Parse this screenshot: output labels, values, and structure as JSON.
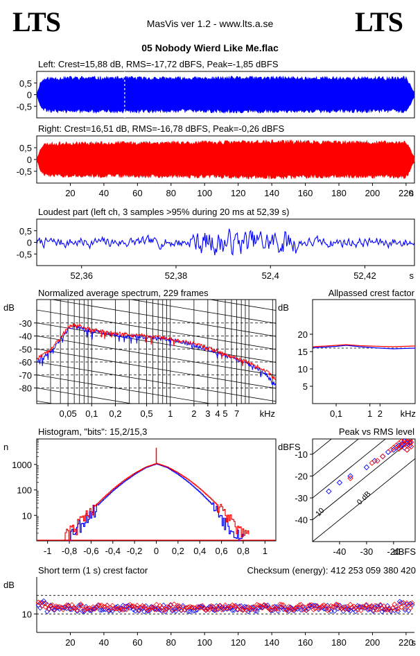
{
  "header": {
    "logo_left": "LTS",
    "logo_right": "LTS",
    "app_title": "MasVis ver 1.2 - www.lts.a.se",
    "file_title": "05 Nobody Wierd Like Me.flac"
  },
  "colors": {
    "left_channel": "#0000ff",
    "right_channel": "#ff0000",
    "axis": "#000000"
  },
  "chart_data": [
    {
      "id": "left_waveform",
      "type": "area",
      "title": "Left: Crest=15,88 dB, RMS=-17,72 dBFS, Peak=-1,85 dBFS",
      "series": [
        {
          "name": "",
          "color": "#0000ff"
        }
      ],
      "xlim": [
        0,
        225
      ],
      "ylim": [
        -1,
        1
      ],
      "ytick_labels": [
        "0,5",
        "0",
        "-0,5"
      ],
      "ytick_values": [
        0.5,
        0,
        -0.5
      ],
      "marker_time": 52.39,
      "envelope_times": [
        0,
        1,
        2,
        4,
        8,
        20,
        40,
        60,
        80,
        100,
        120,
        140,
        160,
        180,
        200,
        215,
        220,
        222,
        223.5,
        225
      ],
      "envelope_amps": [
        0.05,
        0.25,
        0.55,
        0.72,
        0.78,
        0.8,
        0.8,
        0.79,
        0.78,
        0.78,
        0.8,
        0.8,
        0.79,
        0.79,
        0.78,
        0.78,
        0.8,
        0.55,
        0.3,
        0.1
      ]
    },
    {
      "id": "right_waveform",
      "type": "area",
      "title": "Right: Crest=16,51 dB, RMS=-16,78 dBFS, Peak=-0,26 dBFS",
      "series": [
        {
          "name": "",
          "color": "#ff0000"
        }
      ],
      "xlim": [
        0,
        225
      ],
      "ylim": [
        -1,
        1
      ],
      "ytick_labels": [
        "0,5",
        "0",
        "-0,5"
      ],
      "ytick_values": [
        0.5,
        0,
        -0.5
      ],
      "xtick_values": [
        20,
        40,
        60,
        80,
        100,
        120,
        140,
        160,
        180,
        200,
        220
      ],
      "xtick_labels": [
        "20",
        "40",
        "60",
        "80",
        "100",
        "120",
        "140",
        "160",
        "180",
        "200",
        "220"
      ],
      "xunit": "s",
      "envelope_times": [
        0,
        1,
        2,
        4,
        8,
        20,
        40,
        60,
        80,
        100,
        120,
        140,
        160,
        180,
        200,
        215,
        220,
        222,
        223.5,
        225
      ],
      "envelope_amps": [
        0.05,
        0.2,
        0.5,
        0.7,
        0.74,
        0.76,
        0.78,
        0.78,
        0.8,
        0.8,
        0.82,
        0.84,
        0.82,
        0.8,
        0.8,
        0.8,
        0.82,
        0.6,
        0.3,
        0.1
      ]
    },
    {
      "id": "loudest_part",
      "type": "line",
      "title": "Loudest part (left  ch, 3 samples >95% during 20 ms at 52,39 s)",
      "series": [
        {
          "name": "",
          "color": "#0000ff"
        }
      ],
      "xlim": [
        52.3505,
        52.4305
      ],
      "ylim": [
        -1,
        1
      ],
      "ytick_labels": [
        "0,5",
        "0",
        "-0,5"
      ],
      "ytick_values": [
        0.5,
        0,
        -0.5
      ],
      "xtick_values": [
        52.36,
        52.38,
        52.4,
        52.42
      ],
      "xtick_labels": [
        "52,36",
        "52,38",
        "52,4",
        "52,42"
      ],
      "xunit": "s"
    },
    {
      "id": "normalized_spectrum",
      "type": "line",
      "title": "Normalized average spectrum, 229 frames",
      "ylabel": "dB",
      "xscale": "log",
      "xlim": [
        0.02,
        22
      ],
      "ylim": [
        -92,
        -12
      ],
      "ytick_values": [
        -30,
        -40,
        -50,
        -60,
        -70,
        -80
      ],
      "ytick_labels": [
        "-30",
        "-40",
        "-50",
        "-60",
        "-70",
        "-80"
      ],
      "xtick_values": [
        0.05,
        0.1,
        0.2,
        0.5,
        1,
        2,
        3,
        4,
        5,
        7
      ],
      "xtick_labels": [
        "0,05",
        "0,1",
        "0,2",
        "0,5",
        "1",
        "2",
        "3",
        "4",
        "5",
        "7"
      ],
      "xunit": "kHz",
      "series": [
        {
          "name": "",
          "color": "#0000ff",
          "x": [
            0.02,
            0.03,
            0.04,
            0.05,
            0.06,
            0.08,
            0.1,
            0.15,
            0.2,
            0.3,
            0.5,
            0.7,
            1,
            1.5,
            2,
            3,
            4,
            5,
            7,
            10,
            15,
            22
          ],
          "y": [
            -59,
            -52,
            -44,
            -35,
            -32,
            -35,
            -36,
            -38,
            -39,
            -40,
            -41,
            -42,
            -43,
            -45,
            -47,
            -50,
            -53,
            -55,
            -58,
            -62,
            -67,
            -78
          ]
        },
        {
          "name": "",
          "color": "#ff0000",
          "x": [
            0.02,
            0.03,
            0.04,
            0.05,
            0.06,
            0.08,
            0.1,
            0.15,
            0.2,
            0.3,
            0.5,
            0.7,
            1,
            1.5,
            2,
            3,
            4,
            5,
            7,
            10,
            15,
            22
          ],
          "y": [
            -58,
            -50,
            -42,
            -33,
            -31,
            -33,
            -35,
            -37,
            -38,
            -39,
            -40,
            -41,
            -42,
            -44,
            -46,
            -49,
            -52,
            -54,
            -57,
            -61,
            -65,
            -73
          ]
        }
      ]
    },
    {
      "id": "allpassed_crest",
      "type": "line",
      "title": "Allpassed crest factor",
      "ylabel": "dB",
      "xscale": "log",
      "xlim": [
        0.02,
        22
      ],
      "ylim": [
        0,
        30
      ],
      "ytick_values": [
        20,
        15,
        10,
        5
      ],
      "ytick_labels": [
        "20",
        "15",
        "10",
        "5"
      ],
      "xtick_values": [
        0.1,
        1,
        2
      ],
      "xtick_labels": [
        "0,1",
        "1",
        "2"
      ],
      "xunit": "kHz",
      "ref_line": 16,
      "series": [
        {
          "name": "",
          "color": "#0000ff",
          "x": [
            0.02,
            0.05,
            0.1,
            0.2,
            0.5,
            1,
            2,
            5,
            10,
            22
          ],
          "y": [
            16.1,
            16.3,
            16.5,
            16.8,
            16.4,
            16.2,
            16.0,
            15.8,
            15.9,
            16.0
          ]
        },
        {
          "name": "",
          "color": "#ff0000",
          "x": [
            0.02,
            0.05,
            0.1,
            0.2,
            0.5,
            1,
            2,
            5,
            10,
            22
          ],
          "y": [
            16.4,
            16.6,
            16.8,
            17.0,
            16.7,
            16.6,
            16.5,
            16.4,
            16.5,
            16.6
          ]
        }
      ]
    },
    {
      "id": "histogram",
      "type": "line",
      "title": "Histogram, \"bits\": 15,2/15,3",
      "ylabel": "n",
      "yscale": "log",
      "xlim": [
        -1.1,
        1.1
      ],
      "ylim": [
        1,
        10000
      ],
      "ytick_values": [
        1000,
        100,
        10
      ],
      "ytick_labels": [
        "1000",
        "100",
        "10"
      ],
      "xtick_values": [
        -1,
        -0.8,
        -0.6,
        -0.4,
        -0.2,
        0,
        0.2,
        0.4,
        0.6,
        0.8,
        1
      ],
      "xtick_labels": [
        "-1",
        "-0,8",
        "-0,6",
        "-0,4",
        "-0,2",
        "0",
        "0,2",
        "0,4",
        "0,6",
        "0,8",
        "1"
      ],
      "series": [
        {
          "name": "",
          "color": "#0000ff",
          "x": [
            -0.82,
            -0.7,
            -0.6,
            -0.5,
            -0.4,
            -0.3,
            -0.2,
            -0.1,
            0,
            0.1,
            0.2,
            0.3,
            0.4,
            0.5,
            0.6,
            0.7,
            0.8
          ],
          "y": [
            1.5,
            5,
            14,
            38,
            95,
            210,
            420,
            750,
            1050,
            740,
            400,
            190,
            80,
            30,
            9,
            3,
            1.3
          ]
        },
        {
          "name": "",
          "color": "#ff0000",
          "x": [
            -0.85,
            -0.7,
            -0.6,
            -0.5,
            -0.4,
            -0.3,
            -0.2,
            -0.1,
            0,
            0.1,
            0.2,
            0.3,
            0.4,
            0.5,
            0.6,
            0.7,
            0.85
          ],
          "y": [
            1.5,
            6,
            17,
            45,
            110,
            240,
            460,
            790,
            1100,
            790,
            460,
            240,
            110,
            45,
            17,
            6,
            1.5
          ]
        }
      ],
      "spike": {
        "x": 0,
        "y": 4500,
        "color": "#ff0000"
      }
    },
    {
      "id": "peak_vs_rms",
      "type": "scatter",
      "title": "Peak vs RMS level",
      "ylabel": "dBFS",
      "xlabel": "dBFS",
      "xlim": [
        -50,
        -12
      ],
      "ylim": [
        -50,
        -3
      ],
      "ytick_values": [
        -10,
        -20,
        -30,
        -40
      ],
      "ytick_labels": [
        "-10",
        "-20",
        "-30",
        "-40"
      ],
      "xtick_values": [
        -40,
        -30,
        -20
      ],
      "xtick_labels": [
        "-40",
        "-30",
        "-20"
      ],
      "crest_lines": [
        0,
        10,
        20,
        30,
        40
      ],
      "crest_labels": [
        "0 dB",
        "10",
        "20",
        "30",
        "40"
      ],
      "series": [
        {
          "name": "",
          "color": "#0000ff",
          "x": [
            -44,
            -40,
            -36,
            -30,
            -27,
            -24,
            -22,
            -20,
            -19,
            -18,
            -17,
            -17,
            -16,
            -16,
            -15,
            -15,
            -14,
            -14
          ],
          "y": [
            -27,
            -23,
            -20,
            -16,
            -13,
            -11,
            -9,
            -8,
            -7,
            -6,
            -5.5,
            -6.5,
            -4,
            -7,
            -5,
            -8,
            -6,
            -4.5
          ]
        },
        {
          "name": "",
          "color": "#ff0000",
          "x": [
            -36,
            -28,
            -26,
            -24,
            -21,
            -20,
            -19,
            -18,
            -18,
            -17,
            -17,
            -16,
            -16,
            -15,
            -15,
            -15,
            -14,
            -14,
            -13.5,
            -13.5
          ],
          "y": [
            -21,
            -14,
            -13,
            -11,
            -8,
            -7,
            -6,
            -5,
            -7.5,
            -4,
            -6.5,
            -3.5,
            -5.5,
            -4,
            -6,
            -8,
            -5,
            -3.5,
            -6.5,
            -4.5
          ]
        }
      ]
    },
    {
      "id": "short_term_crest",
      "type": "scatter",
      "title": "Short term (1 s) crest factor",
      "checksum_text": "Checksum (energy):   412 253 059 380 420",
      "ylabel": "dB",
      "xlim": [
        0,
        225
      ],
      "ylim": [
        0,
        30
      ],
      "ytick_values": [
        10
      ],
      "ytick_labels": [
        "10"
      ],
      "ref_lines": [
        10,
        20
      ],
      "xtick_values": [
        20,
        40,
        60,
        80,
        100,
        120,
        140,
        160,
        180,
        200,
        220
      ],
      "xtick_labels": [
        "20",
        "40",
        "60",
        "80",
        "100",
        "120",
        "140",
        "160",
        "180",
        "200",
        "220"
      ],
      "xunit": "s",
      "series": [
        {
          "name": "",
          "color": "#0000ff",
          "mean": 13.0
        },
        {
          "name": "",
          "color": "#ff0000",
          "mean": 13.6
        }
      ]
    }
  ]
}
